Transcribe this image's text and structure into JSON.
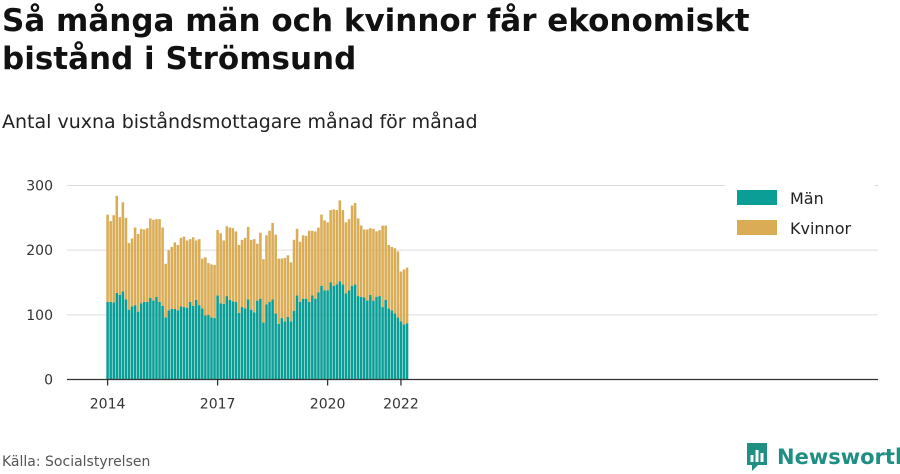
{
  "title": "Så många män och kvinnor får ekonomiskt bistånd i Strömsund",
  "subtitle": "Antal vuxna biståndsmottagare månad för månad",
  "source": "Källa: Socialstyrelsen",
  "brand": {
    "name": "Newsworthy",
    "icon": "newsworthy-logo-icon"
  },
  "colors": {
    "men": "#0a9e96",
    "women": "#d9ac55",
    "grid": "#dcdcdc",
    "axis": "#333333",
    "text": "#333333"
  },
  "chart_data": {
    "type": "bar",
    "stacked": true,
    "x_start": "2014-01",
    "x_tick_labels": [
      "2014",
      "2017",
      "2020",
      "2022"
    ],
    "y_ticks": [
      0,
      100,
      200,
      300
    ],
    "ylim": [
      0,
      300
    ],
    "grid": true,
    "legend_position": "top-right",
    "series": [
      {
        "name": "Män",
        "values": [
          120,
          120,
          119,
          134,
          131,
          136,
          124,
          108,
          113,
          115,
          105,
          118,
          120,
          120,
          126,
          122,
          128,
          120,
          114,
          96,
          107,
          109,
          109,
          107,
          113,
          112,
          111,
          120,
          114,
          123,
          115,
          110,
          99,
          100,
          96,
          95,
          130,
          118,
          117,
          129,
          123,
          121,
          120,
          103,
          112,
          110,
          124,
          108,
          104,
          122,
          125,
          88,
          116,
          120,
          124,
          102,
          86,
          95,
          90,
          97,
          90,
          106,
          130,
          120,
          125,
          125,
          120,
          130,
          125,
          135,
          145,
          138,
          138,
          150,
          145,
          147,
          152,
          147,
          133,
          138,
          145,
          147,
          129,
          128,
          127,
          122,
          131,
          122,
          128,
          129,
          112,
          123,
          110,
          107,
          102,
          96,
          90,
          85,
          87
        ]
      },
      {
        "name": "Kvinnor",
        "values": [
          135,
          125,
          135,
          150,
          120,
          138,
          126,
          103,
          105,
          120,
          120,
          115,
          112,
          114,
          123,
          125,
          120,
          128,
          121,
          83,
          93,
          96,
          103,
          101,
          106,
          109,
          104,
          97,
          106,
          92,
          102,
          77,
          90,
          80,
          82,
          82,
          101,
          108,
          98,
          108,
          112,
          113,
          109,
          105,
          104,
          109,
          112,
          108,
          113,
          88,
          102,
          98,
          107,
          110,
          118,
          122,
          101,
          92,
          98,
          95,
          91,
          110,
          103,
          93,
          98,
          97,
          110,
          100,
          104,
          100,
          110,
          108,
          105,
          112,
          118,
          115,
          125,
          115,
          110,
          110,
          124,
          126,
          120,
          110,
          105,
          110,
          103,
          111,
          101,
          102,
          126,
          115,
          98,
          98,
          101,
          102,
          77,
          85,
          86
        ]
      }
    ]
  }
}
